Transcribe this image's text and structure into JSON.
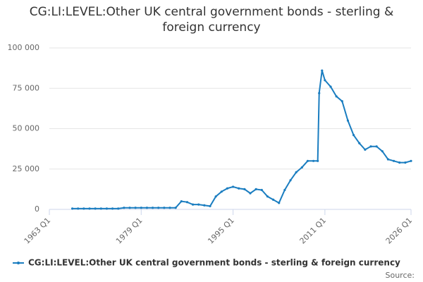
{
  "chart_data": {
    "type": "line",
    "title": "CG:LI:LEVEL:Other UK central government bonds - sterling & foreign currency",
    "source": "Source:",
    "xlim": [
      1963,
      2026
    ],
    "xticks": [
      {
        "value": 1963,
        "label": "1963 Q1"
      },
      {
        "value": 1979,
        "label": "1979 Q1"
      },
      {
        "value": 1995,
        "label": "1995 Q1"
      },
      {
        "value": 2011,
        "label": "2011 Q1"
      },
      {
        "value": 2026,
        "label": "2026 Q1"
      }
    ],
    "ylim": [
      0,
      100000
    ],
    "yticks": [
      0,
      {
        "value": 25000,
        "label": "25 000"
      },
      {
        "value": 50000,
        "label": "50 000"
      },
      {
        "value": 75000,
        "label": "75 000"
      },
      {
        "value": 100000,
        "label": "100 000"
      }
    ],
    "grid": true,
    "x": [
      1967,
      1968,
      1969,
      1970,
      1971,
      1972,
      1973,
      1974,
      1975,
      1976,
      1977,
      1978,
      1979,
      1980,
      1981,
      1982,
      1983,
      1984,
      1985,
      1986,
      1987,
      1988,
      1989,
      1990,
      1991,
      1992,
      1993,
      1994,
      1995,
      1996,
      1997,
      1998,
      1999,
      2000,
      2001,
      2002,
      2003,
      2004,
      2005,
      2006,
      2007,
      2008,
      2009,
      2009.75,
      2010,
      2010.5,
      2011,
      2012,
      2013,
      2014,
      2015,
      2016,
      2017,
      2018,
      2019,
      2020,
      2021,
      2022,
      2023,
      2024,
      2025,
      2026
    ],
    "series": [
      {
        "name": "CG:LI:LEVEL:Other UK central government bonds - sterling & foreign currency",
        "color": "#1a7dc0",
        "values": [
          500,
          500,
          500,
          500,
          500,
          500,
          500,
          500,
          500,
          1000,
          1000,
          1000,
          1000,
          1000,
          1000,
          1000,
          1000,
          1000,
          1000,
          5000,
          4500,
          3000,
          3000,
          2500,
          2000,
          8000,
          11000,
          13000,
          14000,
          13000,
          12500,
          10000,
          12500,
          12000,
          8000,
          6000,
          4000,
          12000,
          18000,
          23000,
          26000,
          30000,
          30000,
          30000,
          72000,
          86000,
          80000,
          76000,
          70000,
          67000,
          55000,
          46000,
          41000,
          37000,
          39000,
          39000,
          36000,
          31000,
          30000,
          29000,
          29000,
          30000
        ]
      }
    ]
  }
}
